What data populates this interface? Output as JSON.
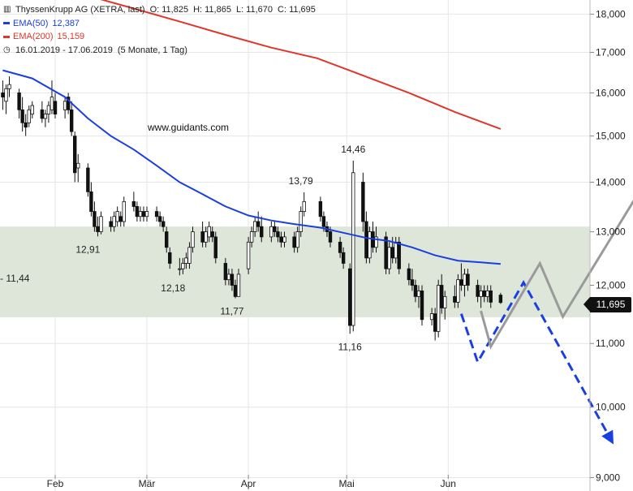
{
  "header": {
    "title": "ThyssenKrupp AG (XETRA, last)",
    "open": "O: 11,825",
    "high": "H: 11,865",
    "low": "L: 11,670",
    "close": "C: 11,695",
    "ema50_label": "EMA(50)",
    "ema50_value": "12,387",
    "ema200_label": "EMA(200)",
    "ema200_value": "15,159",
    "range": "16.01.2019 - 17.06.2019",
    "period": "(5 Monate, 1 Tag)",
    "ema50_color": "#1a3fe0",
    "ema200_color": "#e0362a"
  },
  "watermark": "www.guidants.com",
  "last_price_tag": "11,695",
  "zone_label": "- 11,44",
  "chart_data": {
    "type": "candlestick",
    "y_axis": {
      "scale": "log",
      "range": [
        8.9,
        18.5
      ],
      "ticks": [
        "18,000",
        "17,000",
        "16,000",
        "15,000",
        "14,000",
        "13,000",
        "12,000",
        "11,000",
        "10,000",
        "9,000"
      ],
      "tick_values": [
        18,
        17,
        16,
        15,
        14,
        13,
        12,
        11,
        10,
        9
      ],
      "position": "right"
    },
    "x_axis": {
      "range": [
        "2019-01-16",
        "2019-07-31"
      ],
      "ticks": [
        "Feb",
        "Mär",
        "Apr",
        "Mai",
        "Jun"
      ],
      "tick_dates": [
        "2019-02-01",
        "2019-03-01",
        "2019-04-01",
        "2019-05-01",
        "2019-06-01"
      ]
    },
    "grid": true,
    "support_zone": {
      "low": 11.44,
      "high": 13.1,
      "color": "#dde6d9"
    },
    "annotations": [
      {
        "text": "12,91",
        "date": "2019-02-11",
        "value": 12.91
      },
      {
        "text": "12,18",
        "date": "2019-03-09",
        "value": 12.18
      },
      {
        "text": "11,77",
        "date": "2019-03-27",
        "value": 11.77
      },
      {
        "text": "13,79",
        "date": "2019-04-17",
        "value": 13.79
      },
      {
        "text": "14,46",
        "date": "2019-05-03",
        "value": 14.46
      },
      {
        "text": "11,16",
        "date": "2019-05-02",
        "value": 11.16
      }
    ],
    "candles": [
      {
        "d": "2019-01-16",
        "o": 16.0,
        "h": 16.3,
        "l": 15.6,
        "c": 15.9
      },
      {
        "d": "2019-01-17",
        "o": 15.8,
        "h": 16.2,
        "l": 15.5,
        "c": 16.1
      },
      {
        "d": "2019-01-18",
        "o": 16.1,
        "h": 16.4,
        "l": 15.9,
        "c": 16.2
      },
      {
        "d": "2019-01-21",
        "o": 16.0,
        "h": 16.1,
        "l": 15.4,
        "c": 15.6
      },
      {
        "d": "2019-01-22",
        "o": 15.6,
        "h": 15.9,
        "l": 15.1,
        "c": 15.3
      },
      {
        "d": "2019-01-23",
        "o": 15.3,
        "h": 15.5,
        "l": 15.0,
        "c": 15.2
      },
      {
        "d": "2019-01-24",
        "o": 15.3,
        "h": 15.7,
        "l": 15.2,
        "c": 15.6
      },
      {
        "d": "2019-01-25",
        "o": 15.5,
        "h": 15.8,
        "l": 15.4,
        "c": 15.7
      },
      {
        "d": "2019-01-28",
        "o": 15.6,
        "h": 15.8,
        "l": 15.3,
        "c": 15.4
      },
      {
        "d": "2019-01-29",
        "o": 15.4,
        "h": 15.6,
        "l": 15.2,
        "c": 15.5
      },
      {
        "d": "2019-01-30",
        "o": 15.5,
        "h": 15.8,
        "l": 15.3,
        "c": 15.7
      },
      {
        "d": "2019-01-31",
        "o": 15.6,
        "h": 16.3,
        "l": 15.5,
        "c": 15.9
      },
      {
        "d": "2019-02-01",
        "o": 15.8,
        "h": 16.0,
        "l": 15.4,
        "c": 15.5
      },
      {
        "d": "2019-02-04",
        "o": 15.6,
        "h": 15.9,
        "l": 15.4,
        "c": 15.8
      },
      {
        "d": "2019-02-05",
        "o": 15.9,
        "h": 16.0,
        "l": 15.5,
        "c": 15.6
      },
      {
        "d": "2019-02-06",
        "o": 15.6,
        "h": 15.8,
        "l": 15.0,
        "c": 15.1
      },
      {
        "d": "2019-02-07",
        "o": 15.0,
        "h": 15.1,
        "l": 14.0,
        "c": 14.2
      },
      {
        "d": "2019-02-08",
        "o": 14.3,
        "h": 14.6,
        "l": 14.0,
        "c": 14.4
      },
      {
        "d": "2019-02-11",
        "o": 14.3,
        "h": 14.4,
        "l": 13.7,
        "c": 13.8
      },
      {
        "d": "2019-02-12",
        "o": 13.8,
        "h": 14.0,
        "l": 13.3,
        "c": 13.4
      },
      {
        "d": "2019-02-13",
        "o": 13.4,
        "h": 13.6,
        "l": 13.0,
        "c": 13.1
      },
      {
        "d": "2019-02-14",
        "o": 13.1,
        "h": 13.3,
        "l": 12.91,
        "c": 13.0
      },
      {
        "d": "2019-02-15",
        "o": 13.0,
        "h": 13.4,
        "l": 12.95,
        "c": 13.3
      },
      {
        "d": "2019-02-18",
        "o": 13.2,
        "h": 13.3,
        "l": 13.0,
        "c": 13.1
      },
      {
        "d": "2019-02-19",
        "o": 13.1,
        "h": 13.4,
        "l": 13.0,
        "c": 13.3
      },
      {
        "d": "2019-02-20",
        "o": 13.2,
        "h": 13.5,
        "l": 13.1,
        "c": 13.4
      },
      {
        "d": "2019-02-21",
        "o": 13.3,
        "h": 13.4,
        "l": 13.1,
        "c": 13.2
      },
      {
        "d": "2019-02-22",
        "o": 13.2,
        "h": 13.7,
        "l": 13.1,
        "c": 13.6
      },
      {
        "d": "2019-02-25",
        "o": 13.6,
        "h": 13.8,
        "l": 13.4,
        "c": 13.5
      },
      {
        "d": "2019-02-26",
        "o": 13.5,
        "h": 13.6,
        "l": 13.2,
        "c": 13.3
      },
      {
        "d": "2019-02-27",
        "o": 13.3,
        "h": 13.5,
        "l": 13.2,
        "c": 13.4
      },
      {
        "d": "2019-02-28",
        "o": 13.4,
        "h": 13.5,
        "l": 13.2,
        "c": 13.3
      },
      {
        "d": "2019-03-01",
        "o": 13.3,
        "h": 13.5,
        "l": 13.2,
        "c": 13.4
      },
      {
        "d": "2019-03-04",
        "o": 13.4,
        "h": 13.5,
        "l": 13.2,
        "c": 13.3
      },
      {
        "d": "2019-03-05",
        "o": 13.3,
        "h": 13.4,
        "l": 13.1,
        "c": 13.2
      },
      {
        "d": "2019-03-06",
        "o": 13.2,
        "h": 13.3,
        "l": 13.0,
        "c": 13.1
      },
      {
        "d": "2019-03-07",
        "o": 13.0,
        "h": 13.1,
        "l": 12.6,
        "c": 12.7
      },
      {
        "d": "2019-03-08",
        "o": 12.6,
        "h": 12.7,
        "l": 12.3,
        "c": 12.4
      },
      {
        "d": "2019-03-11",
        "o": 12.3,
        "h": 12.5,
        "l": 12.18,
        "c": 12.3
      },
      {
        "d": "2019-03-12",
        "o": 12.3,
        "h": 12.5,
        "l": 12.2,
        "c": 12.4
      },
      {
        "d": "2019-03-13",
        "o": 12.4,
        "h": 12.6,
        "l": 12.3,
        "c": 12.5
      },
      {
        "d": "2019-03-14",
        "o": 12.4,
        "h": 12.8,
        "l": 12.3,
        "c": 12.7
      },
      {
        "d": "2019-03-15",
        "o": 12.7,
        "h": 13.1,
        "l": 12.6,
        "c": 13.0
      },
      {
        "d": "2019-03-18",
        "o": 13.0,
        "h": 13.2,
        "l": 12.7,
        "c": 12.8
      },
      {
        "d": "2019-03-19",
        "o": 12.8,
        "h": 13.1,
        "l": 12.7,
        "c": 13.0
      },
      {
        "d": "2019-03-20",
        "o": 12.9,
        "h": 13.2,
        "l": 12.8,
        "c": 13.1
      },
      {
        "d": "2019-03-21",
        "o": 13.0,
        "h": 13.1,
        "l": 12.8,
        "c": 12.9
      },
      {
        "d": "2019-03-22",
        "o": 12.9,
        "h": 13.0,
        "l": 12.4,
        "c": 12.5
      },
      {
        "d": "2019-03-25",
        "o": 12.4,
        "h": 12.5,
        "l": 12.0,
        "c": 12.1
      },
      {
        "d": "2019-03-26",
        "o": 12.1,
        "h": 12.3,
        "l": 12.0,
        "c": 12.2
      },
      {
        "d": "2019-03-27",
        "o": 12.2,
        "h": 12.3,
        "l": 11.9,
        "c": 12.0
      },
      {
        "d": "2019-03-28",
        "o": 12.0,
        "h": 12.1,
        "l": 11.77,
        "c": 11.8
      },
      {
        "d": "2019-03-29",
        "o": 11.8,
        "h": 12.3,
        "l": 11.8,
        "c": 12.2
      },
      {
        "d": "2019-04-01",
        "o": 12.3,
        "h": 12.9,
        "l": 12.2,
        "c": 12.8
      },
      {
        "d": "2019-04-02",
        "o": 12.8,
        "h": 13.1,
        "l": 12.7,
        "c": 13.0
      },
      {
        "d": "2019-04-03",
        "o": 13.0,
        "h": 13.3,
        "l": 12.9,
        "c": 13.2
      },
      {
        "d": "2019-04-04",
        "o": 13.2,
        "h": 13.4,
        "l": 13.0,
        "c": 13.1
      },
      {
        "d": "2019-04-05",
        "o": 13.1,
        "h": 13.3,
        "l": 12.8,
        "c": 12.9
      },
      {
        "d": "2019-04-08",
        "o": 12.9,
        "h": 13.2,
        "l": 12.8,
        "c": 13.1
      },
      {
        "d": "2019-04-09",
        "o": 13.1,
        "h": 13.2,
        "l": 12.9,
        "c": 13.0
      },
      {
        "d": "2019-04-10",
        "o": 13.0,
        "h": 13.1,
        "l": 12.8,
        "c": 12.9
      },
      {
        "d": "2019-04-11",
        "o": 12.9,
        "h": 13.0,
        "l": 12.7,
        "c": 12.8
      },
      {
        "d": "2019-04-12",
        "o": 12.8,
        "h": 13.0,
        "l": 12.7,
        "c": 12.9
      },
      {
        "d": "2019-04-15",
        "o": 12.9,
        "h": 13.0,
        "l": 12.6,
        "c": 12.7
      },
      {
        "d": "2019-04-16",
        "o": 12.7,
        "h": 13.1,
        "l": 12.6,
        "c": 13.0
      },
      {
        "d": "2019-04-17",
        "o": 13.0,
        "h": 13.5,
        "l": 12.9,
        "c": 13.4
      },
      {
        "d": "2019-04-18",
        "o": 13.4,
        "h": 13.79,
        "l": 13.3,
        "c": 13.6
      },
      {
        "d": "2019-04-23",
        "o": 13.6,
        "h": 13.7,
        "l": 13.2,
        "c": 13.3
      },
      {
        "d": "2019-04-24",
        "o": 13.3,
        "h": 13.4,
        "l": 13.0,
        "c": 13.1
      },
      {
        "d": "2019-04-25",
        "o": 13.1,
        "h": 13.2,
        "l": 12.9,
        "c": 13.0
      },
      {
        "d": "2019-04-26",
        "o": 13.0,
        "h": 13.1,
        "l": 12.7,
        "c": 12.8
      },
      {
        "d": "2019-04-29",
        "o": 12.8,
        "h": 12.9,
        "l": 12.5,
        "c": 12.6
      },
      {
        "d": "2019-04-30",
        "o": 12.6,
        "h": 12.7,
        "l": 12.3,
        "c": 12.4
      },
      {
        "d": "2019-05-02",
        "o": 12.3,
        "h": 12.4,
        "l": 11.16,
        "c": 11.3
      },
      {
        "d": "2019-05-03",
        "o": 11.3,
        "h": 14.46,
        "l": 11.2,
        "c": 14.2
      },
      {
        "d": "2019-05-06",
        "o": 14.0,
        "h": 14.2,
        "l": 13.0,
        "c": 13.2
      },
      {
        "d": "2019-05-07",
        "o": 13.2,
        "h": 13.4,
        "l": 12.4,
        "c": 12.5
      },
      {
        "d": "2019-05-08",
        "o": 12.5,
        "h": 13.1,
        "l": 12.4,
        "c": 13.0
      },
      {
        "d": "2019-05-09",
        "o": 13.0,
        "h": 13.2,
        "l": 12.6,
        "c": 12.7
      },
      {
        "d": "2019-05-10",
        "o": 12.7,
        "h": 13.1,
        "l": 12.6,
        "c": 12.9
      },
      {
        "d": "2019-05-13",
        "o": 12.9,
        "h": 13.0,
        "l": 12.2,
        "c": 12.3
      },
      {
        "d": "2019-05-14",
        "o": 12.3,
        "h": 12.8,
        "l": 12.2,
        "c": 12.7
      },
      {
        "d": "2019-05-15",
        "o": 12.7,
        "h": 12.9,
        "l": 12.4,
        "c": 12.5
      },
      {
        "d": "2019-05-16",
        "o": 12.5,
        "h": 12.9,
        "l": 12.4,
        "c": 12.8
      },
      {
        "d": "2019-05-17",
        "o": 12.8,
        "h": 12.9,
        "l": 12.2,
        "c": 12.3
      },
      {
        "d": "2019-05-20",
        "o": 12.3,
        "h": 12.4,
        "l": 12.0,
        "c": 12.1
      },
      {
        "d": "2019-05-21",
        "o": 12.1,
        "h": 12.3,
        "l": 11.9,
        "c": 12.0
      },
      {
        "d": "2019-05-22",
        "o": 12.0,
        "h": 12.1,
        "l": 11.7,
        "c": 11.8
      },
      {
        "d": "2019-05-23",
        "o": 11.8,
        "h": 12.0,
        "l": 11.6,
        "c": 11.9
      },
      {
        "d": "2019-05-24",
        "o": 11.9,
        "h": 12.0,
        "l": 11.3,
        "c": 11.4
      },
      {
        "d": "2019-05-27",
        "o": 11.4,
        "h": 11.6,
        "l": 11.3,
        "c": 11.5
      },
      {
        "d": "2019-05-28",
        "o": 11.5,
        "h": 11.6,
        "l": 11.05,
        "c": 11.2
      },
      {
        "d": "2019-05-29",
        "o": 11.2,
        "h": 12.1,
        "l": 11.1,
        "c": 12.0
      },
      {
        "d": "2019-05-30",
        "o": 12.0,
        "h": 12.2,
        "l": 11.5,
        "c": 11.6
      },
      {
        "d": "2019-05-31",
        "o": 11.6,
        "h": 11.9,
        "l": 11.4,
        "c": 11.8
      },
      {
        "d": "2019-06-03",
        "o": 11.8,
        "h": 12.0,
        "l": 11.6,
        "c": 11.7
      },
      {
        "d": "2019-06-04",
        "o": 11.7,
        "h": 12.2,
        "l": 11.6,
        "c": 12.1
      },
      {
        "d": "2019-06-05",
        "o": 12.1,
        "h": 12.4,
        "l": 11.9,
        "c": 12.0
      },
      {
        "d": "2019-06-06",
        "o": 12.0,
        "h": 12.3,
        "l": 11.8,
        "c": 12.2
      },
      {
        "d": "2019-06-07",
        "o": 12.2,
        "h": 12.3,
        "l": 11.9,
        "c": 12.0
      },
      {
        "d": "2019-06-10",
        "o": 12.0,
        "h": 12.1,
        "l": 11.7,
        "c": 11.8
      },
      {
        "d": "2019-06-11",
        "o": 11.8,
        "h": 12.0,
        "l": 11.6,
        "c": 11.9
      },
      {
        "d": "2019-06-12",
        "o": 11.9,
        "h": 12.0,
        "l": 11.7,
        "c": 11.8
      },
      {
        "d": "2019-06-13",
        "o": 11.8,
        "h": 12.0,
        "l": 11.7,
        "c": 11.9
      },
      {
        "d": "2019-06-14",
        "o": 11.9,
        "h": 12.0,
        "l": 11.6,
        "c": 11.7
      },
      {
        "d": "2019-06-17",
        "o": 11.825,
        "h": 11.865,
        "l": 11.67,
        "c": 11.695
      }
    ],
    "series": [
      {
        "name": "EMA(50)",
        "color": "#1a3fe0",
        "points": [
          [
            "2019-01-16",
            16.55
          ],
          [
            "2019-01-25",
            16.35
          ],
          [
            "2019-02-04",
            15.9
          ],
          [
            "2019-02-11",
            15.4
          ],
          [
            "2019-02-18",
            15.0
          ],
          [
            "2019-02-25",
            14.7
          ],
          [
            "2019-03-04",
            14.35
          ],
          [
            "2019-03-11",
            14.0
          ],
          [
            "2019-03-18",
            13.75
          ],
          [
            "2019-03-25",
            13.5
          ],
          [
            "2019-04-01",
            13.32
          ],
          [
            "2019-04-08",
            13.22
          ],
          [
            "2019-04-15",
            13.15
          ],
          [
            "2019-04-23",
            13.08
          ],
          [
            "2019-04-30",
            12.98
          ],
          [
            "2019-05-07",
            12.88
          ],
          [
            "2019-05-14",
            12.82
          ],
          [
            "2019-05-21",
            12.7
          ],
          [
            "2019-05-28",
            12.55
          ],
          [
            "2019-06-04",
            12.45
          ],
          [
            "2019-06-11",
            12.42
          ],
          [
            "2019-06-17",
            12.387
          ]
        ]
      },
      {
        "name": "EMA(200)",
        "color": "#e0362a",
        "points": [
          [
            "2019-01-28",
            18.9
          ],
          [
            "2019-02-11",
            18.5
          ],
          [
            "2019-02-25",
            18.15
          ],
          [
            "2019-03-11",
            17.8
          ],
          [
            "2019-03-25",
            17.45
          ],
          [
            "2019-04-08",
            17.12
          ],
          [
            "2019-04-22",
            16.85
          ],
          [
            "2019-05-06",
            16.42
          ],
          [
            "2019-05-20",
            16.0
          ],
          [
            "2019-06-03",
            15.55
          ],
          [
            "2019-06-17",
            15.159
          ]
        ]
      }
    ],
    "projections": [
      {
        "kind": "bearish",
        "color": "#1a3fe0",
        "style": "dashed",
        "points": [
          [
            "2019-06-05",
            11.5
          ],
          [
            "2019-06-10",
            10.7
          ],
          [
            "2019-06-24",
            12.05
          ],
          [
            "2019-07-21",
            9.5
          ]
        ]
      },
      {
        "kind": "bullish",
        "color": "#9a9a9a",
        "style": "solid",
        "points": [
          [
            "2019-06-11",
            11.55
          ],
          [
            "2019-06-14",
            10.95
          ],
          [
            "2019-06-29",
            12.4
          ],
          [
            "2019-07-06",
            11.45
          ],
          [
            "2019-08-01",
            14.1
          ]
        ]
      }
    ]
  }
}
